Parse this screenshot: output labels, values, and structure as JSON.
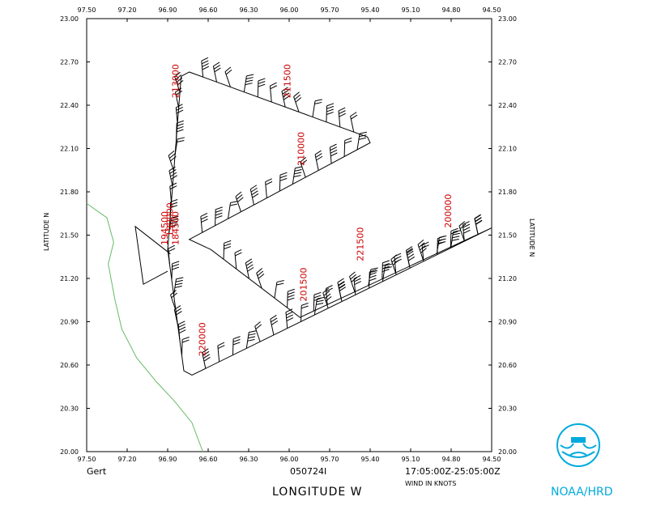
{
  "storm_name": "Gert",
  "flight_id": "050724I",
  "time_range": "17:05:00Z-25:05:00Z",
  "wind_units": "WIND IN KNOTS",
  "agency": "NOAA/HRD",
  "colors": {
    "track": "#000000",
    "coast": "#66bb66",
    "time_labels": "#cc0000",
    "logo": "#00aadd"
  },
  "chart_data": {
    "type": "scatter",
    "xlabel": "LONGITUDE  W",
    "ylabel": "LATITUDE  N",
    "xlim": [
      97.5,
      94.5
    ],
    "ylim": [
      20.0,
      23.0
    ],
    "x_ticks": [
      "97.50",
      "97.20",
      "96.90",
      "96.60",
      "96.30",
      "96.00",
      "95.70",
      "95.40",
      "95.10",
      "94.80",
      "94.50"
    ],
    "y_ticks": [
      "20.00",
      "20.30",
      "20.60",
      "20.90",
      "21.20",
      "21.50",
      "21.80",
      "22.10",
      "22.40",
      "22.70",
      "23.00"
    ],
    "flight_track": [
      [
        94.5,
        21.55
      ],
      [
        95.92,
        20.93
      ],
      [
        96.58,
        21.4
      ],
      [
        96.74,
        21.47
      ],
      [
        95.4,
        22.14
      ],
      [
        95.42,
        22.18
      ],
      [
        96.74,
        22.63
      ],
      [
        96.8,
        22.6
      ],
      [
        96.9,
        21.4
      ],
      [
        96.78,
        20.56
      ],
      [
        96.72,
        20.53
      ],
      [
        94.5,
        21.55
      ]
    ],
    "loop_track": [
      [
        96.88,
        21.37
      ],
      [
        97.14,
        21.56
      ],
      [
        97.08,
        21.16
      ],
      [
        96.9,
        21.25
      ]
    ],
    "coastline": [
      [
        97.5,
        21.72
      ],
      [
        97.35,
        21.62
      ],
      [
        97.3,
        21.45
      ],
      [
        97.34,
        21.3
      ],
      [
        97.29,
        21.05
      ],
      [
        97.24,
        20.85
      ],
      [
        97.13,
        20.65
      ],
      [
        96.98,
        20.48
      ],
      [
        96.85,
        20.35
      ],
      [
        96.72,
        20.2
      ],
      [
        96.64,
        20.0
      ]
    ],
    "time_labels": [
      {
        "text": "213000",
        "lon": 96.82,
        "lat": 22.45
      },
      {
        "text": "211500",
        "lon": 95.99,
        "lat": 22.45
      },
      {
        "text": "210000",
        "lon": 95.89,
        "lat": 21.98
      },
      {
        "text": "194500",
        "lon": 96.9,
        "lat": 21.43
      },
      {
        "text": "190000",
        "lon": 96.86,
        "lat": 21.49
      },
      {
        "text": "184500",
        "lon": 96.82,
        "lat": 21.43
      },
      {
        "text": "221500",
        "lon": 95.45,
        "lat": 21.32
      },
      {
        "text": "201500",
        "lon": 95.87,
        "lat": 21.04
      },
      {
        "text": "220000",
        "lon": 96.62,
        "lat": 20.66
      },
      {
        "text": "200000",
        "lon": 94.8,
        "lat": 21.55
      }
    ]
  }
}
